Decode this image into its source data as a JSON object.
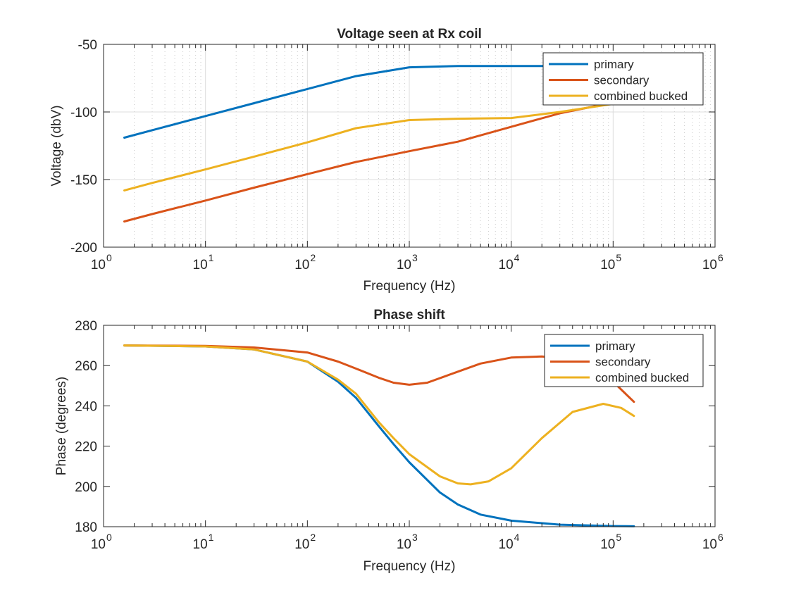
{
  "chart_data": [
    {
      "type": "line",
      "title": "Voltage seen at Rx coil",
      "xlabel": "Frequency (Hz)",
      "ylabel": "Voltage (dbV)",
      "xscale": "log",
      "xlim": [
        1,
        1000000
      ],
      "ylim": [
        -200,
        -50
      ],
      "yticks": [
        -200,
        -150,
        -100,
        -50
      ],
      "xtick_exponents": [
        "0",
        "1",
        "2",
        "3",
        "4",
        "5",
        "6"
      ],
      "xtick_base": "10",
      "grid": true,
      "legend_location": "top-right",
      "series": [
        {
          "name": "primary",
          "color": "#0072BD",
          "x": [
            1.6,
            3,
            10,
            30,
            100,
            300,
            1000,
            3000,
            10000,
            30000,
            100000,
            160000
          ],
          "y": [
            -119,
            -113.5,
            -103,
            -93.5,
            -83,
            -73.5,
            -67,
            -66,
            -66,
            -66,
            -66,
            -66
          ]
        },
        {
          "name": "secondary",
          "color": "#D95319",
          "x": [
            1.6,
            3,
            10,
            30,
            100,
            300,
            1000,
            3000,
            10000,
            30000,
            100000,
            160000
          ],
          "y": [
            -181,
            -175.5,
            -165.5,
            -156,
            -146,
            -137,
            -129,
            -122,
            -111,
            -101,
            -93,
            -90
          ]
        },
        {
          "name": "combined bucked",
          "color": "#EDB120",
          "x": [
            1.6,
            3,
            10,
            30,
            100,
            300,
            1000,
            3000,
            10000,
            30000,
            100000,
            160000
          ],
          "y": [
            -158,
            -152.5,
            -142.5,
            -133,
            -122.5,
            -112,
            -106,
            -105,
            -104.5,
            -100,
            -94,
            -91
          ]
        }
      ]
    },
    {
      "type": "line",
      "title": "Phase shift",
      "xlabel": "Frequency (Hz)",
      "ylabel": "Phase (degrees)",
      "xscale": "log",
      "xlim": [
        1,
        1000000
      ],
      "ylim": [
        180,
        280
      ],
      "yticks": [
        180,
        200,
        220,
        240,
        260,
        280
      ],
      "xtick_exponents": [
        "0",
        "1",
        "2",
        "3",
        "4",
        "5",
        "6"
      ],
      "xtick_base": "10",
      "grid": false,
      "legend_location": "top-right",
      "series": [
        {
          "name": "primary",
          "color": "#0072BD",
          "x": [
            1.6,
            10,
            30,
            100,
            200,
            300,
            500,
            700,
            1000,
            2000,
            3000,
            5000,
            10000,
            30000,
            100000,
            160000
          ],
          "y": [
            270,
            269.5,
            268,
            262,
            252,
            244,
            230,
            221,
            212,
            197,
            191,
            186,
            183,
            181,
            180.3,
            180.2
          ]
        },
        {
          "name": "secondary",
          "color": "#D95319",
          "x": [
            1.6,
            10,
            30,
            100,
            200,
            300,
            500,
            700,
            1000,
            1500,
            3000,
            5000,
            10000,
            20000,
            40000,
            70000,
            100000,
            160000
          ],
          "y": [
            270,
            269.8,
            269,
            266.5,
            262,
            258.5,
            254,
            251.5,
            250.5,
            251.5,
            257,
            261,
            264,
            264.5,
            263,
            258,
            252,
            242
          ]
        },
        {
          "name": "combined bucked",
          "color": "#EDB120",
          "x": [
            1.6,
            10,
            30,
            100,
            200,
            300,
            500,
            700,
            1000,
            2000,
            3000,
            4000,
            6000,
            10000,
            20000,
            40000,
            80000,
            120000,
            160000
          ],
          "y": [
            270,
            269.5,
            268,
            262,
            253,
            246,
            232,
            224,
            216,
            205,
            201.5,
            201,
            202.5,
            209,
            224,
            237,
            241,
            239,
            235
          ]
        }
      ]
    }
  ]
}
